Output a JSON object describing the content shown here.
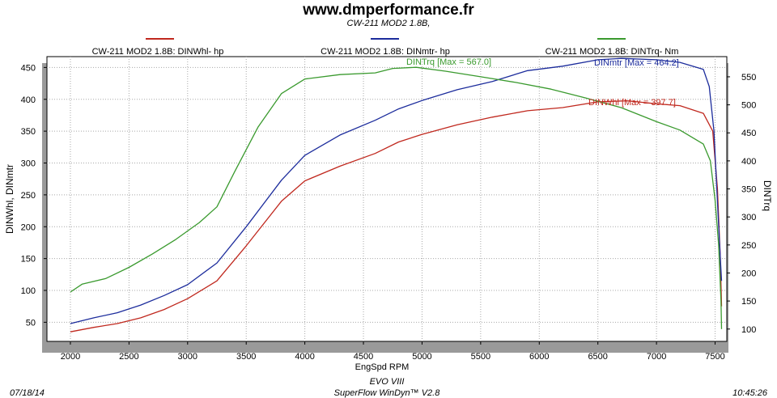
{
  "header": {
    "title": "www.dmperformance.fr",
    "subtitle": "CW-211 MOD2 1.8B,"
  },
  "footer": {
    "date": "07/18/14",
    "time": "10:45:26",
    "line1": "EVO VIII",
    "line2": "SuperFlow WinDyn™ V2.8"
  },
  "chart_data": {
    "type": "line",
    "xlabel": "EngSpd  RPM",
    "ylabel_left": "DINWhl, DINmtr",
    "ylabel_right": "DINTrq",
    "xlim": [
      1800,
      7600
    ],
    "ylim_left": [
      20,
      467
    ],
    "ylim_right": [
      78,
      586
    ],
    "x_ticks": [
      2000,
      2500,
      3000,
      3500,
      4000,
      4500,
      5000,
      5500,
      6000,
      6500,
      7000,
      7500
    ],
    "y_ticks_left": [
      50,
      100,
      150,
      200,
      250,
      300,
      350,
      400,
      450
    ],
    "y_ticks_right": [
      100,
      150,
      200,
      250,
      300,
      350,
      400,
      450,
      500,
      550
    ],
    "grid": true,
    "legend_position": "top",
    "series": [
      {
        "name": "CW-211 MOD2 1.8B: DINWhl-  hp",
        "axis": "left",
        "color": "#c0281e",
        "annotation": "DINWhl [Max = 397.7]",
        "x": [
          2000,
          2200,
          2400,
          2600,
          2800,
          3000,
          3250,
          3500,
          3800,
          4000,
          4300,
          4600,
          4800,
          5000,
          5300,
          5600,
          5900,
          6200,
          6500,
          6750,
          7000,
          7200,
          7400,
          7480,
          7520,
          7545,
          7555
        ],
        "y": [
          35,
          42,
          48,
          57,
          70,
          87,
          115,
          170,
          240,
          272,
          295,
          315,
          333,
          345,
          360,
          372,
          382,
          387,
          396,
          397.7,
          393,
          390,
          378,
          350,
          260,
          150,
          75
        ]
      },
      {
        "name": "CW-211 MOD2 1.8B: DINmtr-  hp",
        "axis": "left",
        "color": "#1c2c9c",
        "annotation": "DINmtr [Max = 464.2]",
        "x": [
          2000,
          2200,
          2400,
          2600,
          2800,
          3000,
          3250,
          3500,
          3800,
          4000,
          4300,
          4600,
          4800,
          5000,
          5300,
          5600,
          5900,
          6200,
          6500,
          6700,
          7000,
          7200,
          7400,
          7450,
          7490,
          7520,
          7545,
          7555
        ],
        "y": [
          48,
          57,
          65,
          77,
          92,
          109,
          143,
          200,
          273,
          312,
          344,
          367,
          385,
          398,
          415,
          428,
          445,
          452,
          462,
          464.2,
          462,
          458,
          447,
          420,
          350,
          240,
          150,
          115
        ]
      },
      {
        "name": "CW-211 MOD2 1.8B: DINTrq-  Nm",
        "axis": "right",
        "color": "#3a9a2e",
        "annotation": "DINTrq [Max = 567.0]",
        "x": [
          2000,
          2100,
          2300,
          2500,
          2700,
          2900,
          3100,
          3250,
          3400,
          3600,
          3800,
          4000,
          4300,
          4600,
          4750,
          4950,
          5200,
          5500,
          5800,
          6100,
          6400,
          6700,
          7000,
          7200,
          7400,
          7460,
          7500,
          7530,
          7550,
          7555
        ],
        "y": [
          166,
          180,
          190,
          210,
          234,
          260,
          290,
          318,
          380,
          460,
          520,
          546,
          554,
          557,
          565,
          567,
          560,
          550,
          540,
          528,
          512,
          495,
          470,
          455,
          430,
          400,
          330,
          250,
          150,
          100
        ]
      }
    ]
  }
}
